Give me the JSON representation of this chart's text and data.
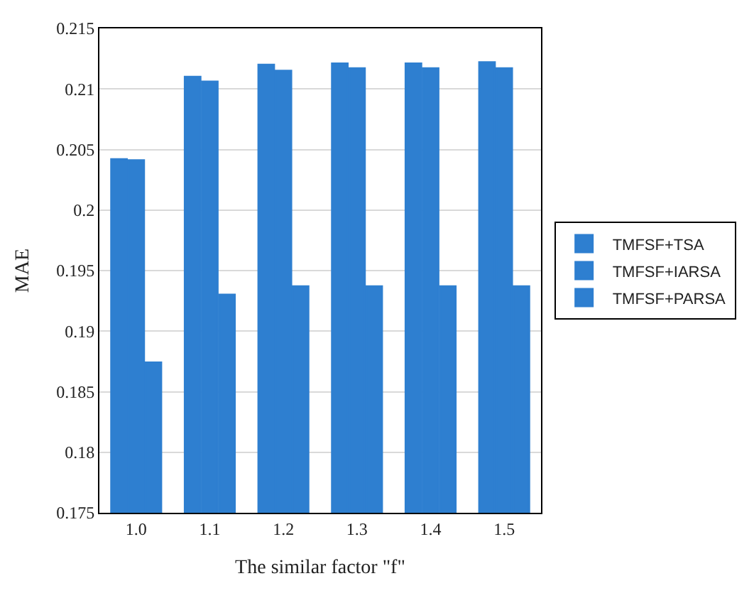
{
  "chart_data": {
    "type": "bar",
    "xlabel": "The similar factor \"f\"",
    "ylabel": "MAE",
    "categories": [
      "1.0",
      "1.1",
      "1.2",
      "1.3",
      "1.4",
      "1.5"
    ],
    "series": [
      {
        "name": "TMFSF+TSA",
        "color": "#2e7fd0",
        "values": [
          0.2042,
          0.211,
          0.212,
          0.2121,
          0.2121,
          0.2122
        ]
      },
      {
        "name": "TMFSF+IARSA",
        "color": "#2e7fd0",
        "values": [
          0.2041,
          0.2106,
          0.2115,
          0.2117,
          0.2117,
          0.2117
        ]
      },
      {
        "name": "TMFSF+PARSA",
        "color": "#2e7fd0",
        "values": [
          0.1874,
          0.193,
          0.1937,
          0.1937,
          0.1937,
          0.1937
        ]
      }
    ],
    "ylim": [
      0.175,
      0.215
    ],
    "yticks": [
      0.175,
      0.18,
      0.185,
      0.19,
      0.195,
      0.2,
      0.205,
      0.21,
      0.215
    ],
    "grid": "y",
    "legend": "right"
  }
}
